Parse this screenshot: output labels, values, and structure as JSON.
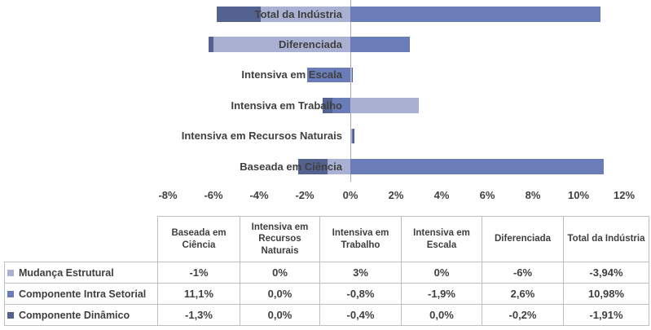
{
  "chart_data": {
    "type": "bar",
    "orientation": "horizontal",
    "stacked": true,
    "title": "",
    "xlabel": "",
    "ylabel": "",
    "xlim": [
      -8,
      12
    ],
    "x_ticks": [
      "-8%",
      "-6%",
      "-4%",
      "-2%",
      "0%",
      "2%",
      "4%",
      "6%",
      "8%",
      "10%",
      "12%"
    ],
    "grid": false,
    "legend_position": "table-row-headers",
    "categories": [
      "Total da Indústria",
      "Diferenciada",
      "Intensiva em Escala",
      "Intensiva em Trabalho",
      "Intensiva em Recursos Naturais",
      "Baseada em Ciência"
    ],
    "series": [
      {
        "name": "Mudança Estrutural",
        "color": "#a9b0d2",
        "values": [
          -3.94,
          -6.0,
          0.0,
          3.0,
          0.0,
          -1.0
        ]
      },
      {
        "name": "Componente Intra Setorial",
        "color": "#6a7db8",
        "values": [
          10.98,
          2.6,
          -1.9,
          -0.8,
          0.0,
          11.1
        ]
      },
      {
        "name": "Componente Dinâmico",
        "color": "#53628f",
        "values": [
          -1.91,
          -0.2,
          0.0,
          -0.4,
          0.0,
          -1.3
        ]
      }
    ],
    "axis_line_color": "#a9a9a9"
  },
  "table": {
    "border_color": "#bfbfbf",
    "columns": [
      "Baseada em Ciência",
      "Intensiva em Recursos Naturais",
      "Intensiva em Trabalho",
      "Intensiva em Escala",
      "Diferenciada",
      "Total da Indústria"
    ],
    "rows": [
      {
        "label": "Mudança Estrutural",
        "swatch_color": "#a9b0d2",
        "values": [
          "-1%",
          "0%",
          "3%",
          "0%",
          "-6%",
          "-3,94%"
        ]
      },
      {
        "label": "Componente Intra Setorial",
        "swatch_color": "#6a7db8",
        "values": [
          "11,1%",
          "0,0%",
          "-0,8%",
          "-1,9%",
          "2,6%",
          "10,98%"
        ]
      },
      {
        "label": "Componente Dinâmico",
        "swatch_color": "#53628f",
        "values": [
          "-1,3%",
          "0,0%",
          "-0,4%",
          "0,0%",
          "-0,2%",
          "-1,91%"
        ]
      }
    ]
  }
}
